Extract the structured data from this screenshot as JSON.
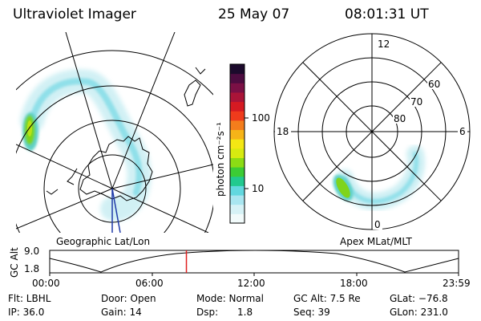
{
  "header": {
    "instrument": "Ultraviolet Imager",
    "date": "25 May 07",
    "time": "08:01:31 UT"
  },
  "left_panel": {
    "caption": "Geographic Lat/Lon"
  },
  "right_panel": {
    "caption": "Apex MLat/MLT",
    "mlt_labels": [
      "12",
      "18",
      "6",
      "0"
    ],
    "mlat_labels": [
      "60",
      "70",
      "80"
    ]
  },
  "colorbar": {
    "unit_label": "photon cm⁻²s⁻¹",
    "tick_labels": [
      "100",
      "10"
    ],
    "colors": [
      "#f2fbfb",
      "#d6f2f6",
      "#a9e6f0",
      "#62d8df",
      "#22c98f",
      "#3ccc35",
      "#8cdc14",
      "#d7ea10",
      "#f4e714",
      "#f6b418",
      "#f47d1c",
      "#ef3b1c",
      "#d51a22",
      "#aa1438",
      "#7b1045",
      "#4d0c40",
      "#1c0a2c"
    ]
  },
  "timeline": {
    "y_axis_label": "GC Alt",
    "y_ticks": [
      "9.0",
      "1.8"
    ],
    "x_ticks": [
      "00:00",
      "06:00",
      "12:00",
      "18:00",
      "23:59"
    ],
    "current_time_hours": 8.025,
    "marker_color": "#e02020"
  },
  "status": {
    "flt": "Flt: LBHL",
    "door": "Door: Open",
    "mode": "Mode: Normal",
    "gc_alt": "GC Alt: 7.5 Re",
    "glat": "GLat: −76.8",
    "ip": "IP: 36.0",
    "gain": "Gain: 14",
    "dsp_label": "Dsp:",
    "dsp_value": "1.8",
    "seq": "Seq: 39",
    "glon": "GLon: 231.0"
  }
}
